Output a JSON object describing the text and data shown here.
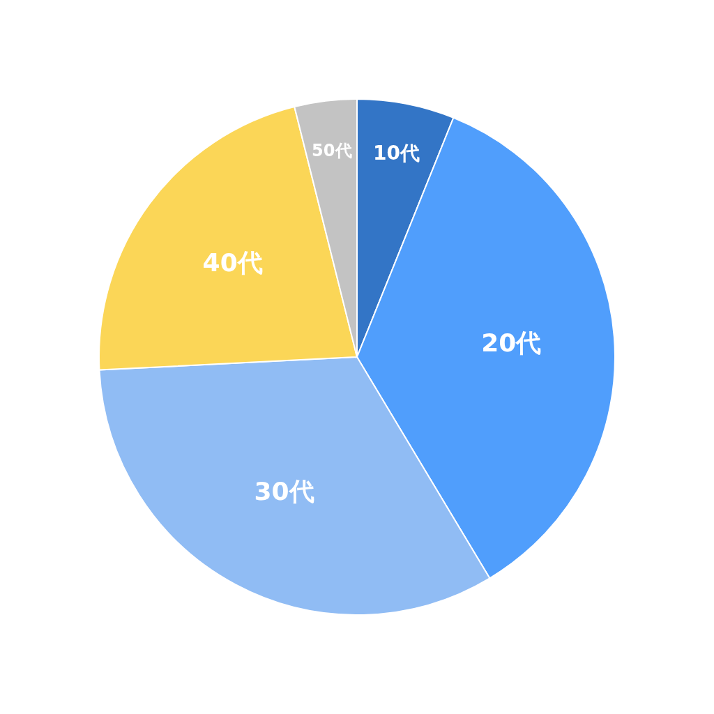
{
  "chart_data": {
    "type": "pie",
    "categories": [
      "10代",
      "20代",
      "30代",
      "40代",
      "50代"
    ],
    "values": [
      6.1,
      35.3,
      32.8,
      21.9,
      3.9
    ],
    "colors": [
      "#3375c6",
      "#509efc",
      "#90bcf4",
      "#fbd657",
      "#c3c3c3"
    ],
    "legend": false
  }
}
